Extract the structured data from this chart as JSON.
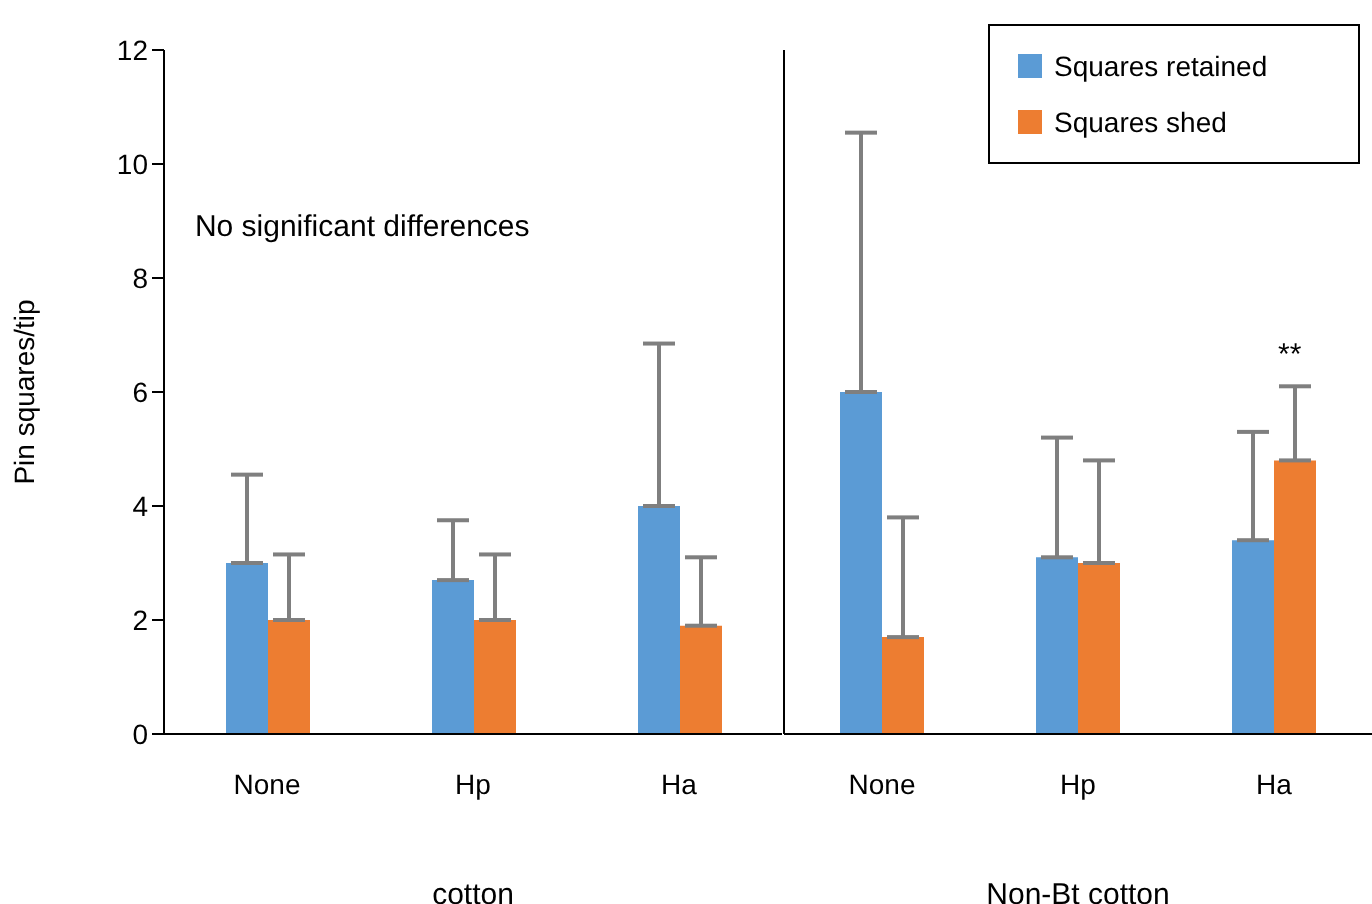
{
  "chart_data": [
    {
      "type": "bar",
      "ylabel": "Pin squares/tip",
      "xlabel": "cotton",
      "categories": [
        "None",
        "Hp",
        "Ha"
      ],
      "series": [
        {
          "color": "#5b9bd5",
          "values": [
            3.0,
            2.7,
            4.0
          ],
          "errors": [
            [
              3.0,
              4.55
            ],
            [
              2.7,
              3.75
            ],
            [
              4.0,
              6.85
            ]
          ]
        },
        {
          "color": "#ed7d31",
          "values": [
            2.0,
            2.0,
            1.9
          ],
          "errors": [
            [
              2.0,
              3.15
            ],
            [
              2.0,
              3.15
            ],
            [
              1.9,
              3.1
            ]
          ]
        }
      ],
      "ylim": [
        0,
        12
      ],
      "yticks": [
        0,
        2,
        4,
        6,
        8,
        10,
        12
      ],
      "annotations": [
        "No significant differences"
      ]
    },
    {
      "type": "bar",
      "xlabel": "Non-Bt cotton",
      "categories": [
        "None",
        "Hp",
        "Ha"
      ],
      "series": [
        {
          "name": "Squares retained",
          "color": "#5b9bd5",
          "values": [
            6.0,
            3.1,
            3.4
          ],
          "errors": [
            [
              6.0,
              10.55
            ],
            [
              3.1,
              5.2
            ],
            [
              3.4,
              5.3
            ]
          ]
        },
        {
          "name": "Squares shed",
          "color": "#ed7d31",
          "values": [
            1.7,
            3.0,
            4.8
          ],
          "errors": [
            [
              1.7,
              3.8
            ],
            [
              3.0,
              4.8
            ],
            [
              4.8,
              6.1
            ]
          ]
        }
      ],
      "ylim": [
        0,
        12
      ],
      "yticks": [
        0,
        2,
        4,
        6,
        8,
        10,
        12
      ],
      "tick_labels": "x",
      "legend": "top right",
      "annotations": [
        "**"
      ]
    }
  ]
}
